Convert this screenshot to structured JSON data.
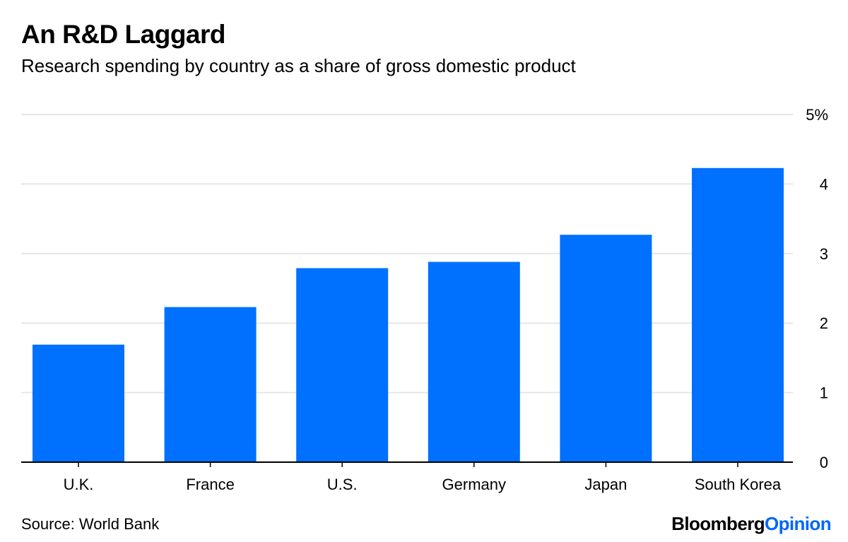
{
  "chart_data": {
    "type": "bar",
    "title": "An R&D Laggard",
    "subtitle": "Research spending by country as a share of gross domestic product",
    "categories": [
      "U.K.",
      "France",
      "U.S.",
      "Germany",
      "Japan",
      "South Korea"
    ],
    "values": [
      1.69,
      2.23,
      2.79,
      2.88,
      3.27,
      4.23
    ],
    "xlabel": "",
    "ylabel": "",
    "ylim": [
      0,
      5
    ],
    "y_ticks": [
      0,
      1,
      2,
      3,
      4,
      5
    ],
    "y_tick_labels": [
      "0",
      "1",
      "2",
      "3",
      "4",
      "5%"
    ],
    "y_axis_position": "right",
    "grid": true,
    "bar_color": "#0070ff"
  },
  "footer": {
    "source": "Source: World Bank",
    "brand_part1": "Bloomberg",
    "brand_part2": "Opinion"
  },
  "colors": {
    "brand_accent": "#0066ff",
    "gridline": "#e6e6e6",
    "axis": "#000000"
  }
}
